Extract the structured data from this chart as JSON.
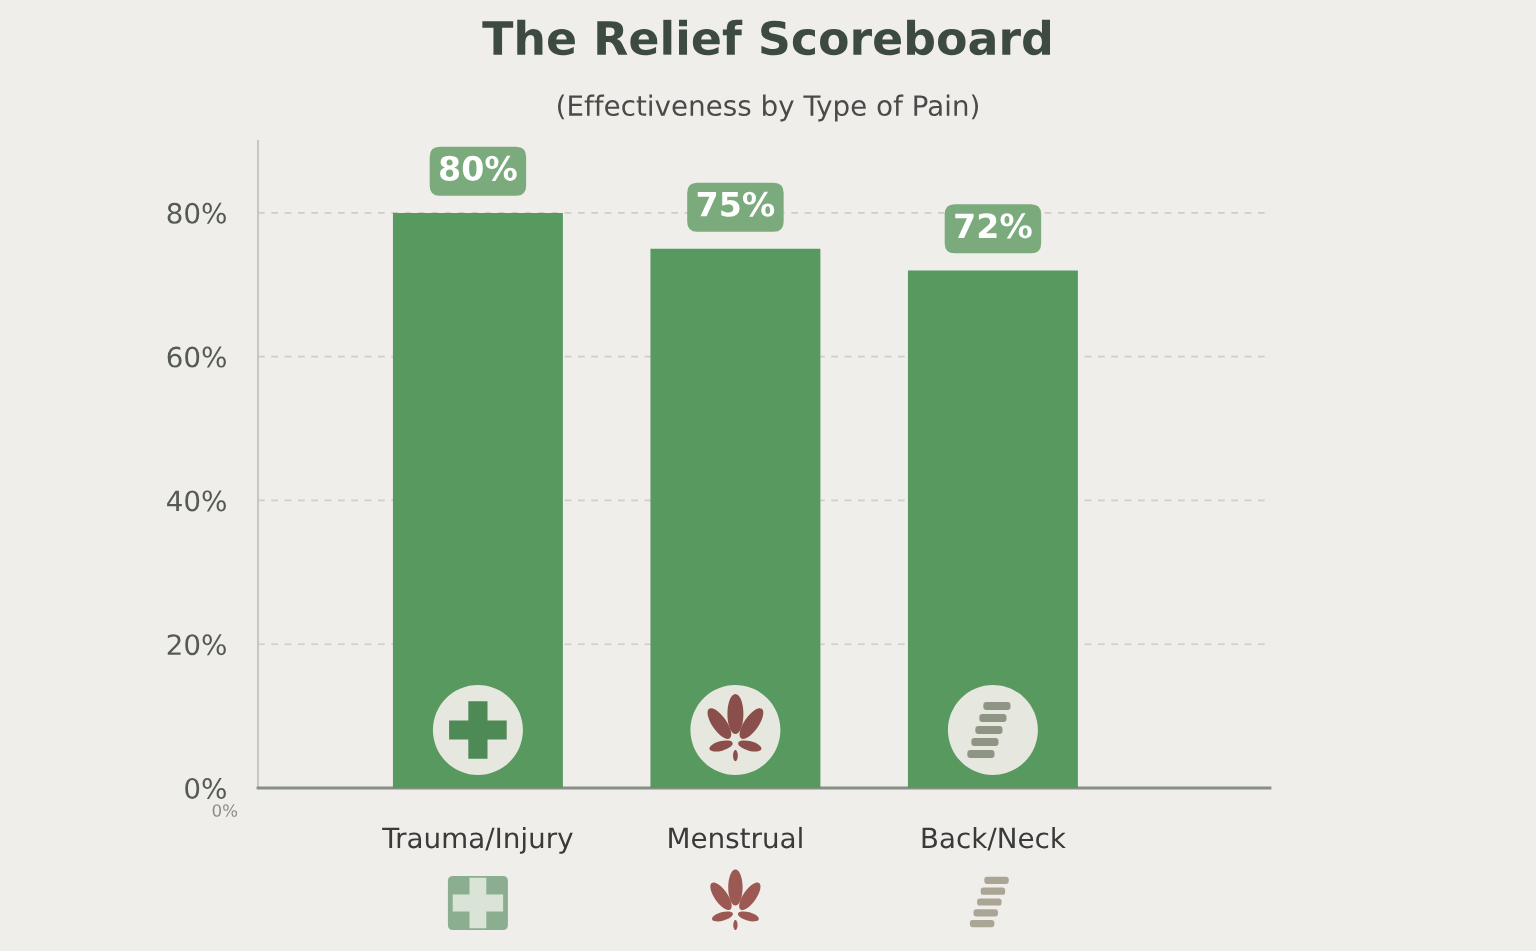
{
  "chart_data": {
    "type": "bar",
    "title": "The Relief Scoreboard",
    "subtitle": "(Effectiveness by Type of Pain)",
    "categories": [
      "Trauma/Injury",
      "Menstrual",
      "Back/Neck"
    ],
    "values": [
      80,
      75,
      72
    ],
    "color": "#58995f",
    "value_labels": [
      "80%",
      "75%",
      "72%"
    ],
    "ylim": [
      0,
      90
    ],
    "yticks": [
      {
        "value": 0,
        "label": "0%"
      },
      {
        "value": 20,
        "label": "20%"
      },
      {
        "value": 40,
        "label": "40%"
      },
      {
        "value": 60,
        "label": "60%"
      },
      {
        "value": 80,
        "label": "80%"
      }
    ],
    "grid": "y",
    "annotations": [
      "0%"
    ]
  }
}
